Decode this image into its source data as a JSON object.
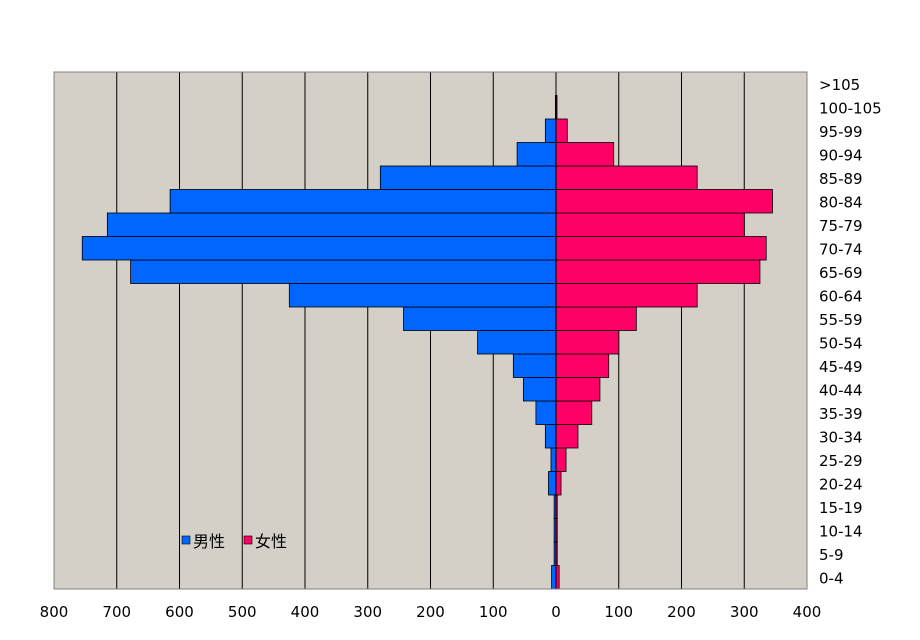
{
  "chart_data": {
    "type": "bar",
    "orientation": "horizontal-population-pyramid",
    "categories": [
      "0-4",
      "5-9",
      "10-14",
      "15-19",
      "20-24",
      "25-29",
      "30-34",
      "35-39",
      "40-44",
      "45-49",
      "50-54",
      "55-59",
      "60-64",
      "65-69",
      "70-74",
      "75-79",
      "80-84",
      "85-89",
      "90-94",
      "95-99",
      "100-105",
      ">105"
    ],
    "series": [
      {
        "name": "男性",
        "color": "#0066ff",
        "direction": "left",
        "values": [
          7,
          3,
          3,
          3,
          12,
          8,
          17,
          32,
          52,
          68,
          125,
          243,
          425,
          678,
          755,
          715,
          615,
          280,
          62,
          17,
          1,
          0
        ]
      },
      {
        "name": "女性",
        "color": "#ff0066",
        "direction": "right",
        "values": [
          5,
          2,
          2,
          2,
          8,
          16,
          35,
          57,
          70,
          84,
          100,
          128,
          225,
          325,
          335,
          300,
          345,
          225,
          92,
          18,
          1,
          0
        ]
      }
    ],
    "xlim": [
      -800,
      400
    ],
    "xticks": [
      -800,
      -700,
      -600,
      -500,
      -400,
      -300,
      -200,
      -100,
      0,
      100,
      200,
      300,
      400
    ],
    "xtick_labels": [
      "800",
      "700",
      "600",
      "500",
      "400",
      "300",
      "200",
      "100",
      "0",
      "100",
      "200",
      "300",
      "400"
    ],
    "legend_position": "bottom-left inside plot",
    "grid": "vertical",
    "plot_background": "#d4d0c8",
    "title": "",
    "xlabel": "",
    "ylabel": ""
  }
}
